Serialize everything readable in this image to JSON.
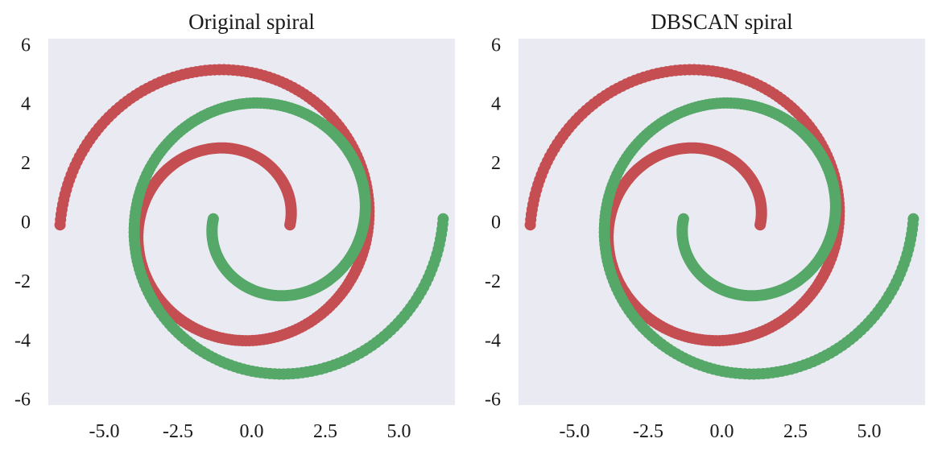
{
  "colors": {
    "red": "#c44e52",
    "green": "#55a868",
    "plot_background": "#eaeaf2"
  },
  "chart_data": [
    {
      "type": "scatter",
      "title": "Original spiral",
      "xlabel": "",
      "ylabel": "",
      "xlim": [
        -6.9,
        6.9
      ],
      "ylim": [
        -6.2,
        6.2
      ],
      "xticks": [
        -5.0,
        -2.5,
        0.0,
        2.5,
        5.0
      ],
      "xtick_labels": [
        "-5.0",
        "-2.5",
        "0.0",
        "2.5",
        "5.0"
      ],
      "yticks": [
        6,
        4,
        2,
        0,
        -2,
        -4,
        -6
      ],
      "ytick_labels": [
        "6",
        "4",
        "2",
        "0",
        "-2",
        "-4",
        "-6"
      ],
      "grid": false,
      "legend": "none",
      "series": [
        {
          "color": "#c44e52",
          "shape": "spiral",
          "center": [
            -0.6,
            -0.1
          ],
          "start_radius": 1.9,
          "end_radius": 5.9,
          "start_angle_deg": 0,
          "end_angle_deg": 540,
          "x_range": [
            -6.5,
            5.4
          ],
          "y_range": [
            -4.1,
            5.8
          ]
        },
        {
          "color": "#55a868",
          "shape": "spiral",
          "center": [
            0.6,
            0.1
          ],
          "start_radius": 1.9,
          "end_radius": 5.9,
          "start_angle_deg": 180,
          "end_angle_deg": 720,
          "x_range": [
            -5.3,
            6.5
          ],
          "y_range": [
            -5.7,
            4.1
          ]
        }
      ]
    },
    {
      "type": "scatter",
      "title": "DBSCAN spiral",
      "xlabel": "",
      "ylabel": "",
      "xlim": [
        -6.9,
        6.9
      ],
      "ylim": [
        -6.2,
        6.2
      ],
      "xticks": [
        -5.0,
        -2.5,
        0.0,
        2.5,
        5.0
      ],
      "xtick_labels": [
        "-5.0",
        "-2.5",
        "0.0",
        "2.5",
        "5.0"
      ],
      "yticks": [
        6,
        4,
        2,
        0,
        -2,
        -4,
        -6
      ],
      "ytick_labels": [
        "6",
        "4",
        "2",
        "0",
        "-2",
        "-4",
        "-6"
      ],
      "grid": false,
      "legend": "none",
      "series": [
        {
          "color": "#c44e52",
          "shape": "spiral",
          "center": [
            -0.6,
            -0.1
          ],
          "start_radius": 1.9,
          "end_radius": 5.9,
          "start_angle_deg": 0,
          "end_angle_deg": 540,
          "x_range": [
            -6.5,
            5.4
          ],
          "y_range": [
            -4.1,
            5.8
          ]
        },
        {
          "color": "#55a868",
          "shape": "spiral",
          "center": [
            0.6,
            0.1
          ],
          "start_radius": 1.9,
          "end_radius": 5.9,
          "start_angle_deg": 180,
          "end_angle_deg": 720,
          "x_range": [
            -5.3,
            6.5
          ],
          "y_range": [
            -5.7,
            4.1
          ]
        }
      ]
    }
  ]
}
